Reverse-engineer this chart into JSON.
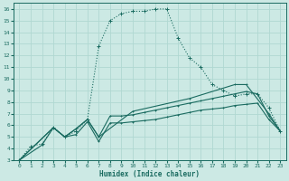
{
  "xlabel": "Humidex (Indice chaleur)",
  "bg_color": "#cce9e4",
  "grid_color": "#b0d8d2",
  "line_color": "#1a6b60",
  "xlim": [
    -0.5,
    23.5
  ],
  "ylim": [
    3,
    16.5
  ],
  "xticks": [
    0,
    1,
    2,
    3,
    4,
    5,
    6,
    7,
    8,
    9,
    10,
    11,
    12,
    13,
    14,
    15,
    16,
    17,
    18,
    19,
    20,
    21,
    22,
    23
  ],
  "yticks": [
    3,
    4,
    5,
    6,
    7,
    8,
    9,
    10,
    11,
    12,
    13,
    14,
    15,
    16
  ],
  "dotted_x": [
    0,
    1,
    2,
    3,
    4,
    5,
    6,
    7,
    8,
    9,
    10,
    11,
    12,
    13,
    14,
    15,
    16,
    17,
    18,
    19,
    20,
    21,
    22,
    23
  ],
  "dotted_y": [
    3.0,
    4.2,
    4.4,
    5.8,
    5.0,
    5.5,
    6.5,
    12.8,
    15.0,
    15.6,
    15.8,
    15.8,
    16.0,
    16.0,
    13.5,
    11.8,
    11.0,
    9.5,
    9.0,
    8.5,
    8.7,
    8.7,
    7.5,
    5.5
  ],
  "curve_a_x": [
    0,
    2,
    3,
    4,
    5,
    6,
    7,
    8,
    9,
    10,
    11,
    12,
    13,
    14,
    15,
    16,
    17,
    18,
    19,
    20,
    21,
    22,
    23
  ],
  "curve_a_y": [
    3.0,
    4.3,
    5.8,
    5.0,
    5.2,
    6.3,
    4.6,
    6.2,
    6.2,
    6.3,
    6.4,
    6.5,
    6.7,
    6.9,
    7.1,
    7.3,
    7.4,
    7.5,
    7.7,
    7.8,
    7.9,
    6.5,
    5.5
  ],
  "curve_b_x": [
    0,
    3,
    4,
    5,
    6,
    7,
    8,
    9,
    10,
    11,
    12,
    13,
    14,
    15,
    16,
    17,
    18,
    19,
    20,
    21,
    22,
    23
  ],
  "curve_b_y": [
    3.0,
    5.8,
    5.0,
    5.7,
    6.5,
    5.0,
    6.8,
    6.8,
    6.9,
    7.1,
    7.3,
    7.5,
    7.7,
    7.9,
    8.1,
    8.3,
    8.5,
    8.7,
    8.9,
    8.7,
    6.8,
    5.5
  ],
  "curve_c_x": [
    0,
    3,
    4,
    5,
    6,
    7,
    10,
    15,
    19,
    20,
    22,
    23
  ],
  "curve_c_y": [
    3.0,
    5.8,
    5.0,
    5.7,
    6.5,
    5.0,
    7.2,
    8.3,
    9.5,
    9.5,
    7.0,
    5.5
  ]
}
